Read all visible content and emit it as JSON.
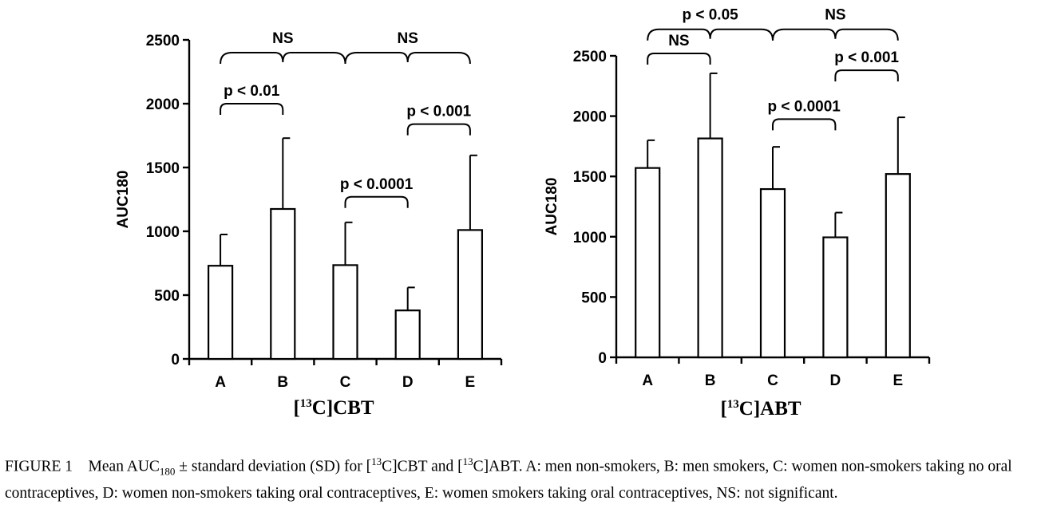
{
  "chart_data": [
    {
      "type": "bar",
      "ylabel": "AUC180",
      "xlabel_main": "CBT",
      "xlabel_sup": "13",
      "xlabel_prefix": "[",
      "xlabel_mid": "C]",
      "categories": [
        "A",
        "B",
        "C",
        "D",
        "E"
      ],
      "values": [
        730,
        1175,
        735,
        380,
        1010
      ],
      "error_sd": [
        245,
        555,
        335,
        180,
        585
      ],
      "ylim": [
        0,
        2500
      ],
      "yticks": [
        0,
        500,
        1000,
        1500,
        2000,
        2500
      ],
      "grid": false,
      "annotations": [
        {
          "label": "p < 0.01",
          "from": "A",
          "to": "B",
          "kind": "bracket",
          "level": 2000
        },
        {
          "label": "p < 0.0001",
          "from": "C",
          "to": "D",
          "kind": "bracket",
          "level": 1270
        },
        {
          "label": "p < 0.001",
          "from": "D",
          "to": "E",
          "kind": "bracket",
          "level": 1840
        },
        {
          "label": "NS",
          "from": "A",
          "to": "C",
          "kind": "brace",
          "level": 2400
        },
        {
          "label": "NS",
          "from": "C",
          "to": "E",
          "kind": "brace",
          "level": 2400
        }
      ]
    },
    {
      "type": "bar",
      "ylabel": "AUC180",
      "xlabel_main": "ABT",
      "xlabel_sup": "13",
      "xlabel_prefix": "[",
      "xlabel_mid": "C]",
      "categories": [
        "A",
        "B",
        "C",
        "D",
        "E"
      ],
      "values": [
        1570,
        1815,
        1395,
        995,
        1520
      ],
      "error_sd": [
        230,
        540,
        350,
        205,
        470
      ],
      "ylim": [
        0,
        2500
      ],
      "yticks": [
        0,
        500,
        1000,
        1500,
        2000,
        2500
      ],
      "grid": false,
      "annotations": [
        {
          "label": "NS",
          "from": "A",
          "to": "B",
          "kind": "bracket",
          "level": 2520
        },
        {
          "label": "p < 0.0001",
          "from": "C",
          "to": "D",
          "kind": "bracket",
          "level": 1975
        },
        {
          "label": "p < 0.001",
          "from": "D",
          "to": "E",
          "kind": "bracket",
          "level": 2380
        },
        {
          "label": "p < 0.05",
          "from": "A",
          "to": "C",
          "kind": "brace",
          "level": 2720
        },
        {
          "label": "NS",
          "from": "C",
          "to": "E",
          "kind": "brace",
          "level": 2720
        }
      ]
    }
  ],
  "caption": {
    "lead": "FIGURE 1",
    "t1": "Mean AUC",
    "sub": "180",
    "t2": " ± standard deviation (SD) for [",
    "sup1": "13",
    "t3": "C]CBT and [",
    "sup2": "13",
    "t4": "C]ABT. A: men non-smokers, B: men smokers, C: women non-smokers taking no oral contraceptives, D: women non-smokers taking oral contraceptives, E: women smokers taking oral contraceptives, NS: not significant."
  }
}
